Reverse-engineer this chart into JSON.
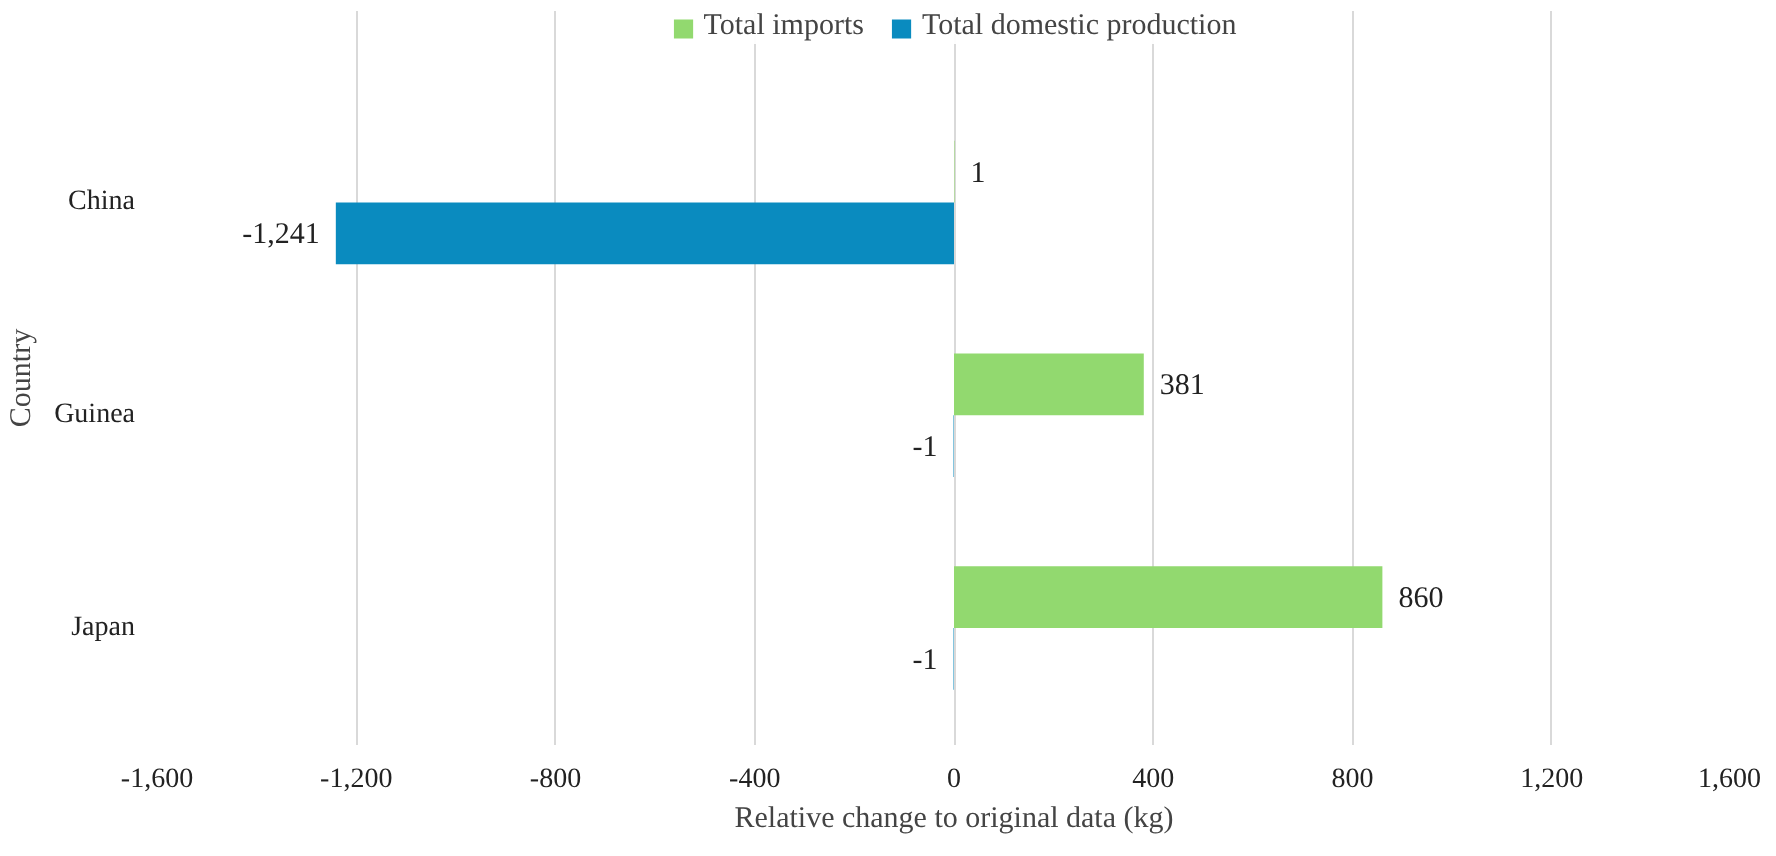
{
  "chart_data": {
    "type": "bar",
    "orientation": "horizontal",
    "xlabel": "Relative change to original data (kg)",
    "ylabel": "Country",
    "categories": [
      "China",
      "Guinea",
      "Japan"
    ],
    "series": [
      {
        "name": "Total imports",
        "color": "#92d96f",
        "values": [
          1,
          381,
          860
        ],
        "value_labels": [
          "1",
          "381",
          "860"
        ]
      },
      {
        "name": "Total domestic production",
        "color": "#0a8bbf",
        "values": [
          -1241,
          -1,
          -1
        ],
        "value_labels": [
          "-1,241",
          "-1",
          "-1"
        ]
      }
    ],
    "xlim": [
      -1600,
      1600
    ],
    "xticks": [
      {
        "value": -1600,
        "label": "-1,600"
      },
      {
        "value": -1200,
        "label": "-1,200"
      },
      {
        "value": -800,
        "label": "-800"
      },
      {
        "value": -400,
        "label": "-400"
      },
      0,
      400,
      800,
      {
        "value": 1200,
        "label": "1,200"
      },
      {
        "value": 1600,
        "label": "1,600"
      }
    ],
    "grid": "x",
    "legend": "top"
  }
}
